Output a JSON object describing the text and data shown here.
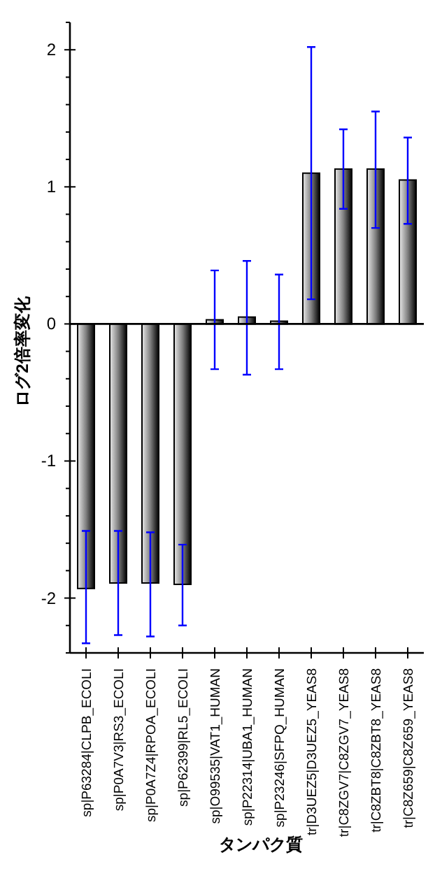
{
  "chart_data": {
    "type": "bar",
    "xlabel": "タンパク質",
    "ylabel": "ログ2倍率変化",
    "categories": [
      "sp|P63284|CLPB_ECOLI",
      "sp|P0A7V3|RS3_ECOLI",
      "sp|P0A7Z4|RPOA_ECOLI",
      "sp|P62399|RL5_ECOLI",
      "sp|O99535|VAT1_HUMAN",
      "sp|P22314|UBA1_HUMAN",
      "sp|P23246|SFPQ_HUMAN",
      "tr|D3UEZ5|D3UEZ5_YEAS8",
      "tr|C8ZGV7|C8ZGV7_YEAS8",
      "tr|C8ZBT8|C8ZBT8_YEAS8",
      "tr|C8Z659|C8Z659_YEAS8"
    ],
    "values": [
      -1.93,
      -1.89,
      -1.89,
      -1.9,
      0.03,
      0.05,
      0.02,
      1.1,
      1.13,
      1.13,
      1.05
    ],
    "errors": [
      [
        -2.33,
        -1.51
      ],
      [
        -2.27,
        -1.51
      ],
      [
        -2.28,
        -1.52
      ],
      [
        -2.2,
        -1.61
      ],
      [
        -0.33,
        0.39
      ],
      [
        -0.37,
        0.46
      ],
      [
        -0.33,
        0.36
      ],
      [
        0.18,
        2.02
      ],
      [
        0.84,
        1.42
      ],
      [
        0.7,
        1.55
      ],
      [
        0.73,
        1.36
      ]
    ],
    "ylim": [
      -2.4,
      2.2
    ],
    "yticks": [
      {
        "value": -2.4,
        "label": null
      },
      {
        "value": -2.2,
        "label": null
      },
      -2,
      {
        "value": -1.8,
        "label": null
      },
      {
        "value": -1.6,
        "label": null
      },
      {
        "value": -1.4,
        "label": null
      },
      {
        "value": -1.2,
        "label": null
      },
      -1,
      {
        "value": -0.8,
        "label": null
      },
      {
        "value": -0.6,
        "label": null
      },
      {
        "value": -0.4,
        "label": null
      },
      {
        "value": -0.2,
        "label": null
      },
      0,
      {
        "value": 0.2,
        "label": null
      },
      {
        "value": 0.4,
        "label": null
      },
      {
        "value": 0.6,
        "label": null
      },
      {
        "value": 0.8,
        "label": null
      },
      1,
      {
        "value": 1.2,
        "label": null
      },
      {
        "value": 1.4,
        "label": null
      },
      {
        "value": 1.6,
        "label": null
      },
      {
        "value": 1.8,
        "label": null
      },
      2,
      {
        "value": 2.2,
        "label": null
      }
    ]
  }
}
